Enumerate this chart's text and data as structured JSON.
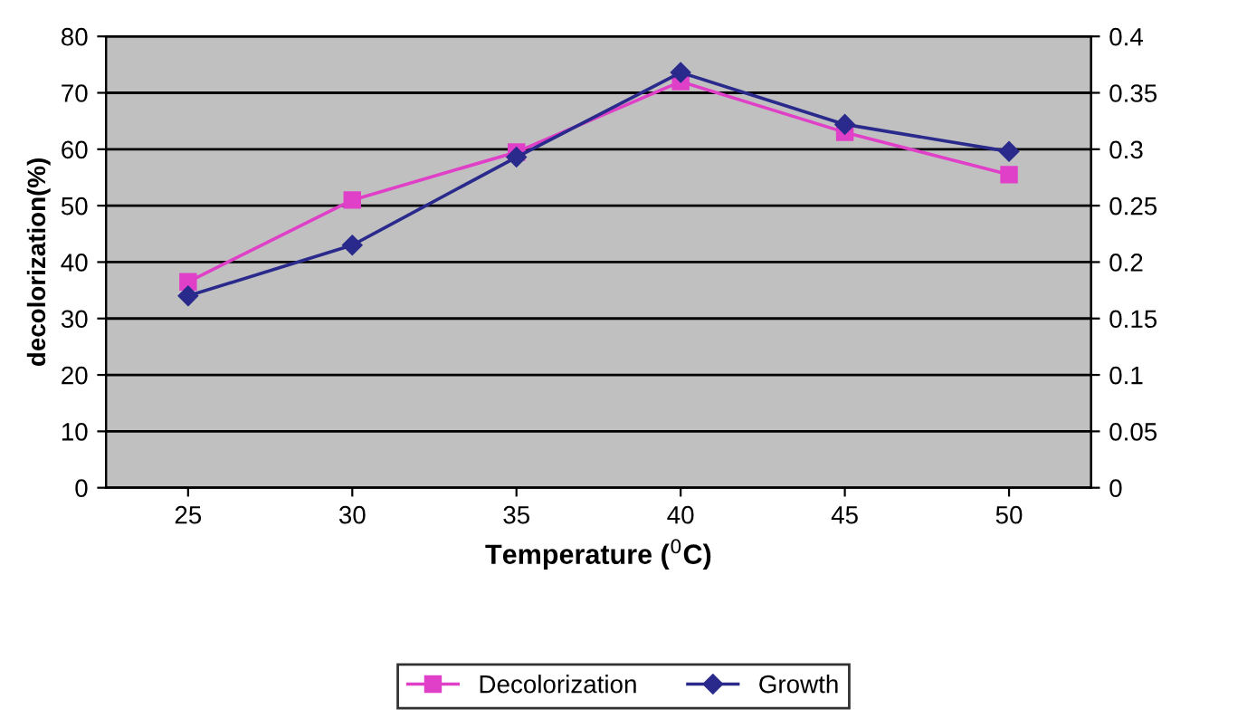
{
  "chart_data": {
    "type": "line",
    "xlabel": "Temperature ($^{0}$C)",
    "ylabel": "decolorization(%)",
    "categories": [
      "25",
      "30",
      "35",
      "40",
      "45",
      "50"
    ],
    "series": [
      {
        "name": "Decolorization",
        "color": "#e040c8",
        "marker": "square",
        "values": [
          36.5,
          51,
          59.5,
          72,
          63,
          55.5
        ]
      },
      {
        "name": "Growth",
        "color": "#2a2a8c",
        "marker": "diamond",
        "axis": "y2",
        "values": [
          0.17,
          0.215,
          0.293,
          0.368,
          0.322,
          0.298
        ]
      }
    ],
    "ylim": [
      0,
      80
    ],
    "yticks": [
      0,
      10,
      20,
      30,
      40,
      50,
      60,
      70,
      80
    ],
    "y2lim": [
      0,
      0.4
    ],
    "y2ticks": [
      0,
      0.05,
      0.1,
      0.15,
      0.2,
      0.25,
      0.3,
      0.35,
      0.4
    ],
    "grid": "y",
    "legend": "bottom"
  }
}
